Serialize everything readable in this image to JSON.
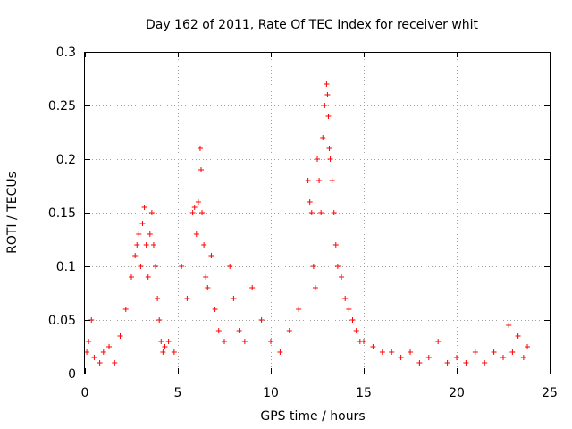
{
  "chart_data": {
    "type": "scatter",
    "title": "Day 162 of 2011, Rate Of TEC Index for receiver whit",
    "xlabel": "GPS time / hours",
    "ylabel": "ROTI / TECUs",
    "xlim": [
      0,
      25
    ],
    "ylim": [
      0,
      0.3
    ],
    "x_ticks": [
      "0",
      "5",
      "10",
      "15",
      "20",
      "25"
    ],
    "y_ticks": [
      "0",
      "0.05",
      "0.1",
      "0.15",
      "0.2",
      "0.25",
      "0.3"
    ],
    "grid": true,
    "marker": "plus",
    "color": "#ff0000",
    "series": [
      {
        "x": [
          0.1,
          0.2,
          0.35,
          0.5,
          0.8,
          1.0,
          1.3,
          1.6,
          1.9,
          2.2,
          2.5,
          2.7,
          2.8,
          2.9,
          3.0,
          3.1,
          3.2,
          3.3,
          3.4,
          3.5,
          3.6,
          3.7,
          3.8,
          3.9,
          4.0,
          4.1,
          4.2,
          4.3,
          4.5,
          4.8,
          5.2,
          5.5,
          5.8,
          5.9,
          6.0,
          6.1,
          6.2,
          6.25,
          6.3,
          6.4,
          6.5,
          6.6,
          6.8,
          7.0,
          7.2,
          7.5,
          7.8,
          8.0,
          8.3,
          8.6,
          9.0,
          9.5,
          10.0,
          10.5,
          11.0,
          11.5,
          12.0,
          12.1,
          12.2,
          12.3,
          12.4,
          12.5,
          12.6,
          12.7,
          12.8,
          12.9,
          13.0,
          13.05,
          13.1,
          13.15,
          13.2,
          13.3,
          13.4,
          13.5,
          13.6,
          13.8,
          14.0,
          14.2,
          14.4,
          14.6,
          14.8,
          15.0,
          15.5,
          16.0,
          16.5,
          17.0,
          17.5,
          18.0,
          18.5,
          19.0,
          19.5,
          20.0,
          20.5,
          21.0,
          21.5,
          22.0,
          22.5,
          22.8,
          23.0,
          23.3,
          23.6,
          23.8
        ],
        "y": [
          0.02,
          0.03,
          0.05,
          0.015,
          0.01,
          0.02,
          0.025,
          0.01,
          0.035,
          0.06,
          0.09,
          0.11,
          0.12,
          0.13,
          0.1,
          0.14,
          0.155,
          0.12,
          0.09,
          0.13,
          0.15,
          0.12,
          0.1,
          0.07,
          0.05,
          0.03,
          0.02,
          0.025,
          0.03,
          0.02,
          0.1,
          0.07,
          0.15,
          0.155,
          0.13,
          0.16,
          0.21,
          0.19,
          0.15,
          0.12,
          0.09,
          0.08,
          0.11,
          0.06,
          0.04,
          0.03,
          0.1,
          0.07,
          0.04,
          0.03,
          0.08,
          0.05,
          0.03,
          0.02,
          0.04,
          0.06,
          0.18,
          0.16,
          0.15,
          0.1,
          0.08,
          0.2,
          0.18,
          0.15,
          0.22,
          0.25,
          0.27,
          0.26,
          0.24,
          0.21,
          0.2,
          0.18,
          0.15,
          0.12,
          0.1,
          0.09,
          0.07,
          0.06,
          0.05,
          0.04,
          0.03,
          0.03,
          0.025,
          0.02,
          0.02,
          0.015,
          0.02,
          0.01,
          0.015,
          0.03,
          0.01,
          0.015,
          0.01,
          0.02,
          0.01,
          0.02,
          0.015,
          0.045,
          0.02,
          0.035,
          0.015,
          0.025
        ]
      }
    ]
  }
}
